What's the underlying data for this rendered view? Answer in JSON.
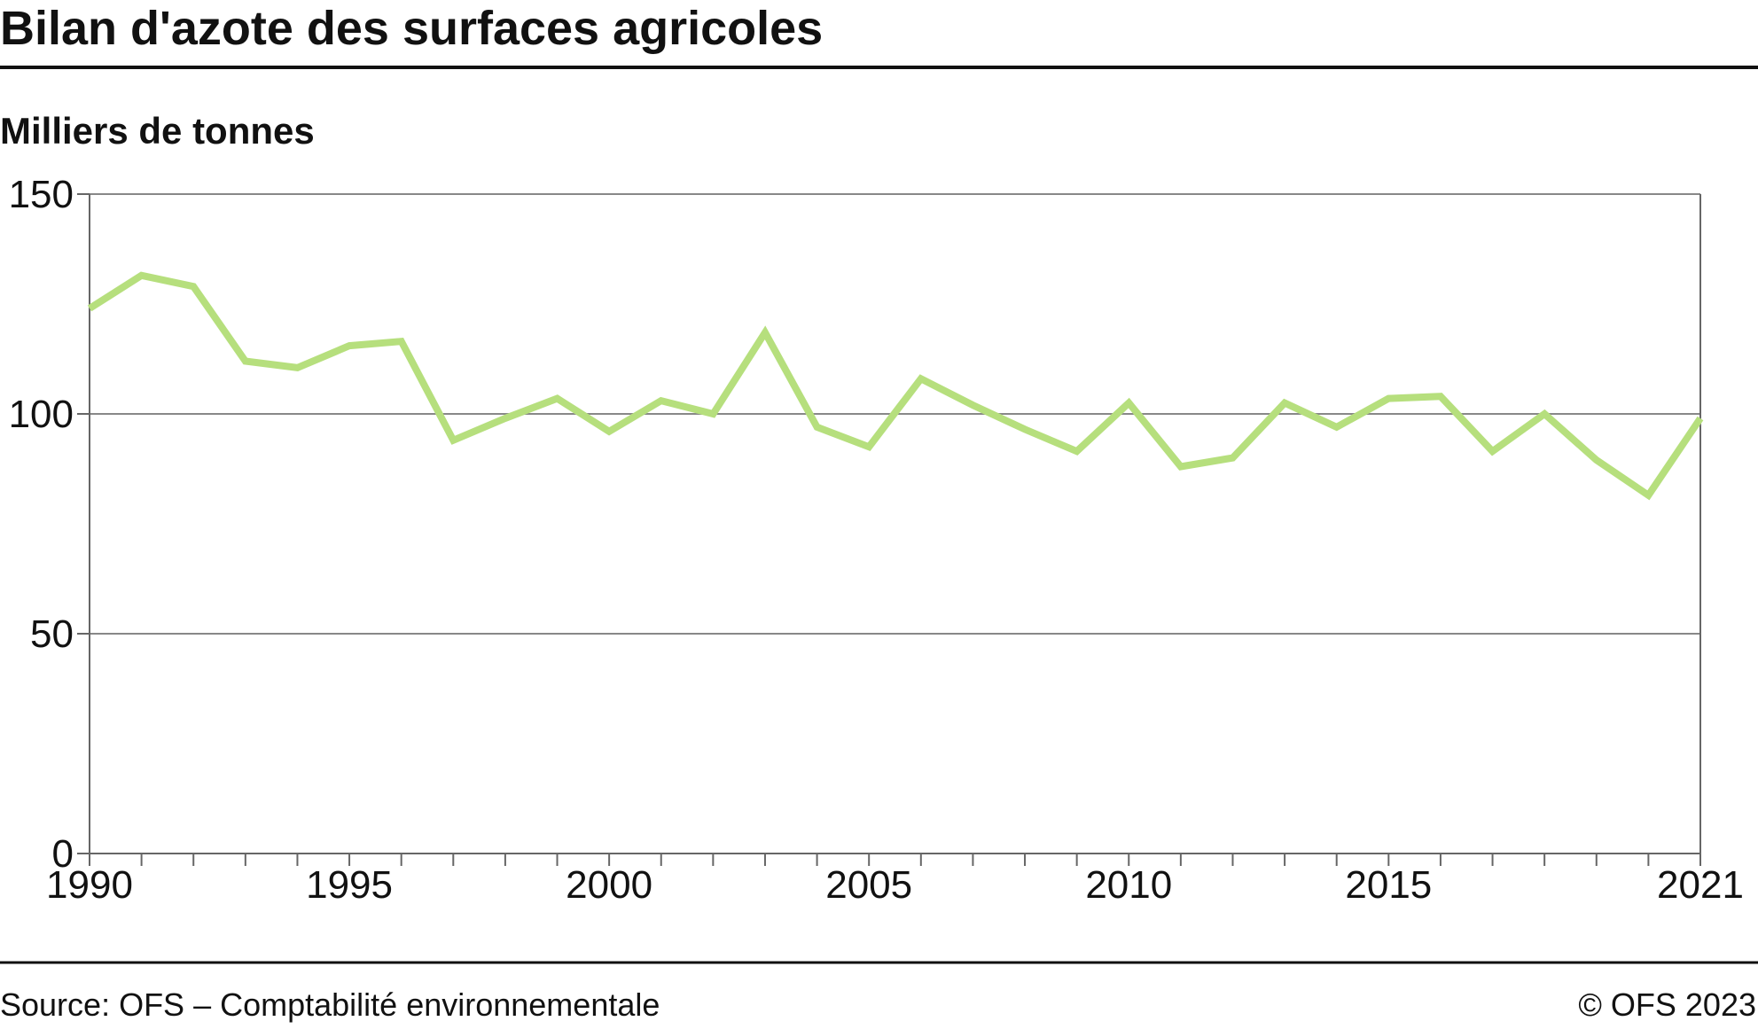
{
  "header": {
    "title": "Bilan d'azote des surfaces agricoles",
    "unit": "Milliers de tonnes"
  },
  "footer": {
    "source": "Source: OFS – Comptabilité environnementale",
    "copyright": "© OFS 2023"
  },
  "colors": {
    "line": "#b6df7d",
    "grid": "#888888",
    "axis": "#666666",
    "rule": "#111111"
  },
  "chart_data": {
    "type": "line",
    "xlim": [
      1990,
      2021
    ],
    "ylim": [
      0,
      150
    ],
    "y_ticks": [
      "0",
      "50",
      "100",
      "150"
    ],
    "x_tick_labels": [
      "1990",
      "1995",
      "2000",
      "2005",
      "2010",
      "2015",
      "2021"
    ],
    "grid": "horizontal",
    "x": [
      1990,
      1991,
      1992,
      1993,
      1994,
      1995,
      1996,
      1997,
      1998,
      1999,
      2000,
      2001,
      2002,
      2003,
      2004,
      2005,
      2006,
      2007,
      2008,
      2009,
      2010,
      2011,
      2012,
      2013,
      2014,
      2015,
      2016,
      2017,
      2018,
      2019,
      2020,
      2021
    ],
    "series": [
      {
        "values": [
          124,
          131.5,
          129,
          112,
          110.5,
          115.5,
          116.5,
          94,
          99,
          103.5,
          96,
          103,
          100,
          118.5,
          97,
          92.5,
          108,
          102,
          96.5,
          91.5,
          102.5,
          88,
          90,
          102.5,
          97,
          103.5,
          104,
          91.5,
          100,
          89.5,
          81.5,
          99
        ]
      }
    ]
  }
}
